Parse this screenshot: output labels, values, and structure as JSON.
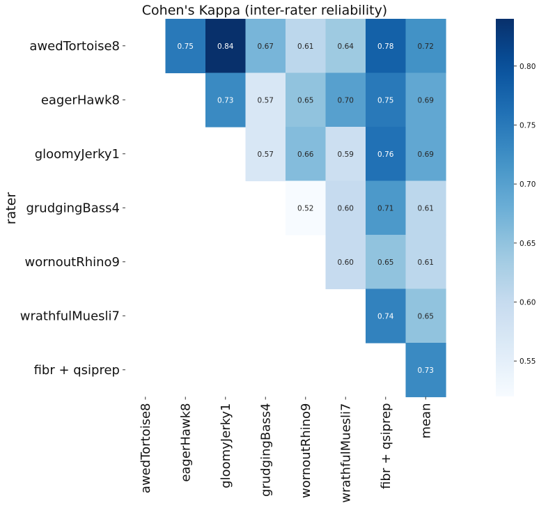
{
  "chart_data": {
    "type": "heatmap",
    "title": "Cohen's Kappa (inter-rater reliability)",
    "ylabel": "rater",
    "xlabel": "",
    "rows": [
      "awedTortoise8",
      "eagerHawk8",
      "gloomyJerky1",
      "grudgingBass4",
      "wornoutRhino9",
      "wrathfulMuesli7",
      "fibr + qsiprep"
    ],
    "columns": [
      "awedTortoise8",
      "eagerHawk8",
      "gloomyJerky1",
      "grudgingBass4",
      "wornoutRhino9",
      "wrathfulMuesli7",
      "fibr + qsiprep",
      "mean"
    ],
    "values": [
      [
        null,
        0.75,
        0.84,
        0.67,
        0.61,
        0.64,
        0.78,
        0.72
      ],
      [
        null,
        null,
        0.73,
        0.57,
        0.65,
        0.7,
        0.75,
        0.69
      ],
      [
        null,
        null,
        null,
        0.57,
        0.66,
        0.59,
        0.76,
        0.69
      ],
      [
        null,
        null,
        null,
        null,
        0.52,
        0.6,
        0.71,
        0.61
      ],
      [
        null,
        null,
        null,
        null,
        null,
        0.6,
        0.65,
        0.61
      ],
      [
        null,
        null,
        null,
        null,
        null,
        null,
        0.74,
        0.65
      ],
      [
        null,
        null,
        null,
        null,
        null,
        null,
        null,
        0.73
      ]
    ],
    "cell_label_format": "2 decimals",
    "colormap": "Blues",
    "colormap_stops": [
      "#f7fbff",
      "#deebf7",
      "#c6dbef",
      "#9ecae1",
      "#6baed6",
      "#4292c6",
      "#2171b5",
      "#08519c",
      "#08306b"
    ],
    "vmin": 0.52,
    "vmax": 0.84,
    "colorbar_ticks": [
      0.55,
      0.6,
      0.65,
      0.7,
      0.75,
      0.8
    ],
    "colorbar_tick_labels": [
      "0.55",
      "0.60",
      "0.65",
      "0.70",
      "0.75",
      "0.80"
    ],
    "grid": false,
    "colorbar_placement": "right"
  }
}
